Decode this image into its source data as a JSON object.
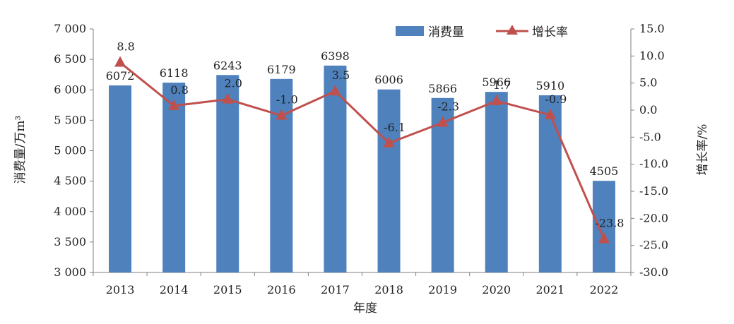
{
  "chart_data": {
    "type": "bar+line",
    "categories": [
      "2013",
      "2014",
      "2015",
      "2016",
      "2017",
      "2018",
      "2019",
      "2020",
      "2021",
      "2022"
    ],
    "series": [
      {
        "name": "消费量",
        "type": "bar",
        "axis": "left",
        "values": [
          6072,
          6118,
          6243,
          6179,
          6398,
          6006,
          5866,
          5966,
          5910,
          4505
        ],
        "labels": [
          "6072",
          "6118",
          "6243",
          "6179",
          "6398",
          "6006",
          "5866",
          "5966",
          "5910",
          "4505"
        ],
        "color": "#4f81bd"
      },
      {
        "name": "增长率",
        "type": "line",
        "axis": "right",
        "values": [
          8.8,
          0.8,
          2.0,
          -1.0,
          3.5,
          -6.1,
          -2.3,
          1.7,
          -0.9,
          -23.8
        ],
        "labels": [
          "8.8",
          "0.8",
          "2.0",
          "-1.0",
          "3.5",
          "-6.1",
          "-2.3",
          "1.7",
          "-0.9",
          "-23.8"
        ],
        "color": "#c0504d",
        "marker": "triangle"
      }
    ],
    "xlabel": "年度",
    "ylabel_left": "消费量/万m³",
    "ylabel_right": "增长率/%",
    "ylim_left": [
      3000,
      7000
    ],
    "ylim_right": [
      -30,
      15
    ],
    "yticks_left": [
      "3 000",
      "3 500",
      "4 000",
      "4 500",
      "5 000",
      "5 500",
      "6 000",
      "6 500",
      "7 000"
    ],
    "yticks_right": [
      "-30.0",
      "-25.0",
      "-20.0",
      "-15.0",
      "-10.0",
      "-5.0",
      "0.0",
      "5.0",
      "10.0",
      "15.0"
    ],
    "grid": false,
    "legend_position": "top-right"
  }
}
